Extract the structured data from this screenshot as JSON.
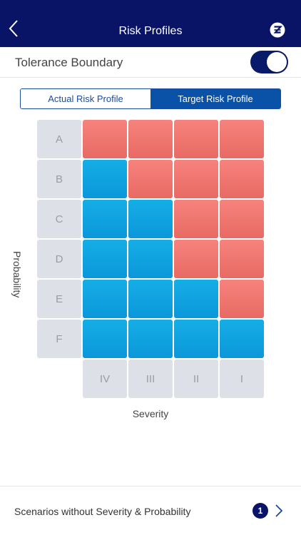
{
  "header": {
    "title": "Risk Profiles",
    "back_icon": "chevron-left-icon",
    "logo_icon": "zurich-logo-icon"
  },
  "tolerance": {
    "label": "Tolerance Boundary",
    "enabled": true
  },
  "tabs": [
    {
      "label": "Actual Risk Profile",
      "active": false
    },
    {
      "label": "Target Risk Profile",
      "active": true
    }
  ],
  "matrix": {
    "probability_labels": [
      "A",
      "B",
      "C",
      "D",
      "E",
      "F"
    ],
    "severity_labels": [
      "IV",
      "III",
      "II",
      "I"
    ],
    "cells": [
      [
        "red",
        "red",
        "red",
        "red"
      ],
      [
        "blue",
        "red",
        "red",
        "red"
      ],
      [
        "blue",
        "blue",
        "red",
        "red"
      ],
      [
        "blue",
        "blue",
        "red",
        "red"
      ],
      [
        "blue",
        "blue",
        "blue",
        "red"
      ],
      [
        "blue",
        "blue",
        "blue",
        "blue"
      ]
    ],
    "y_axis_label": "Probability",
    "x_axis_label": "Severity",
    "colors": {
      "red": "#ee736d",
      "blue": "#10a3e0",
      "label_bg": "#dde0e6"
    }
  },
  "footer": {
    "label": "Scenarios without Severity & Probability",
    "count": "1",
    "chevron_icon": "chevron-right-icon"
  }
}
